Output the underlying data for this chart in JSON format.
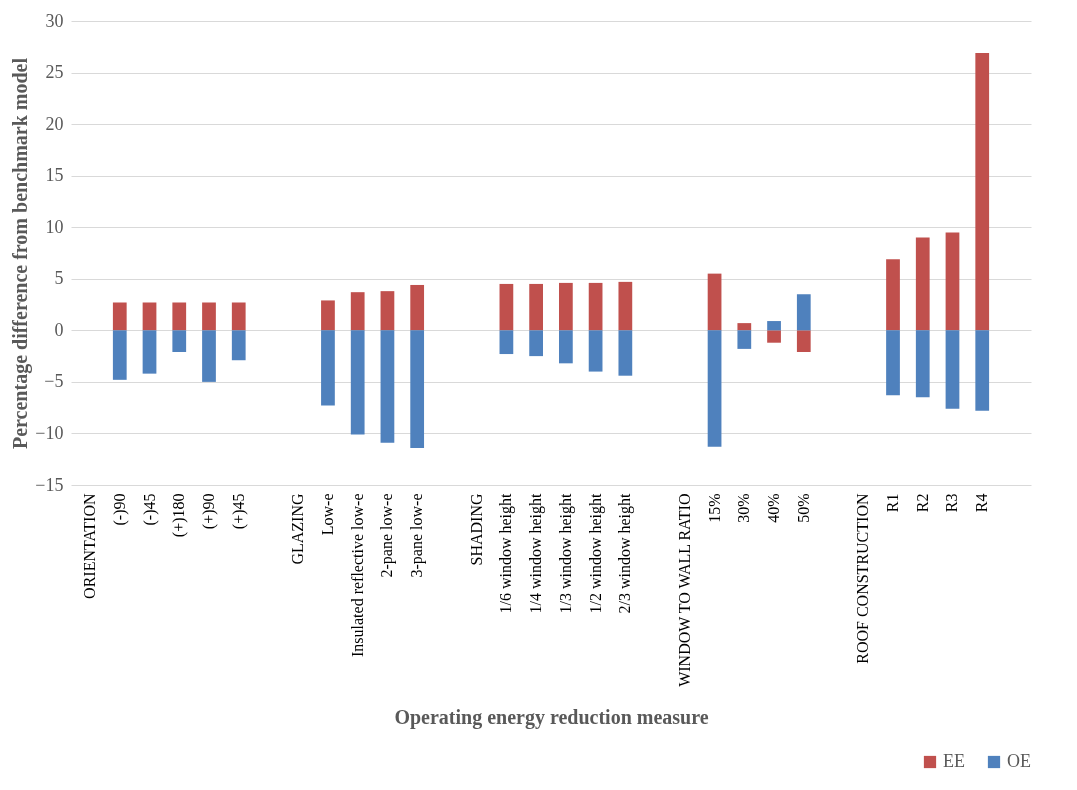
{
  "chart_data": {
    "type": "bar",
    "stacked": true,
    "xlabel": "Operating energy reduction measure",
    "ylabel": "Percentage difference from benchmark model",
    "categories": [
      "ORIENTATION",
      "(-)90",
      "(-)45",
      "(+)180",
      "(+)90",
      "(+)45",
      null,
      "GLAZING",
      "Low-e",
      "Insulated reflective low-e",
      "2-pane low-e",
      "3-pane low-e",
      null,
      "SHADING",
      "1/6 window height",
      "1/4 window height",
      "1/3 window height",
      "1/2 window height",
      "2/3 window height",
      null,
      "WINDOW TO WALL RATIO",
      "15%",
      "30%",
      "40%",
      "50%",
      null,
      "ROOF CONSTRUCTION",
      "R1",
      "R2",
      "R3",
      "R4",
      null
    ],
    "series": [
      {
        "name": "EE",
        "color": "#c0504d",
        "values": [
          null,
          2.7,
          2.7,
          2.7,
          2.7,
          2.7,
          null,
          null,
          2.9,
          3.7,
          3.8,
          4.4,
          null,
          null,
          4.5,
          4.5,
          4.6,
          4.6,
          4.7,
          null,
          null,
          5.5,
          0.7,
          -1.2,
          -2.1,
          null,
          null,
          6.9,
          9.0,
          9.5,
          26.9,
          null
        ]
      },
      {
        "name": "OE",
        "color": "#4f81bd",
        "values": [
          null,
          -4.8,
          -4.2,
          -2.1,
          -5.0,
          -2.9,
          null,
          null,
          -7.3,
          -10.1,
          -10.9,
          -11.4,
          null,
          null,
          -2.3,
          -2.5,
          -3.2,
          -4.0,
          -4.4,
          null,
          null,
          -11.3,
          -1.8,
          0.9,
          3.5,
          null,
          null,
          -6.3,
          -6.5,
          -7.6,
          -7.8,
          null
        ]
      }
    ],
    "ylim": [
      -15,
      30
    ],
    "yticks": [
      -15,
      -10,
      -5,
      0,
      5,
      10,
      15,
      20,
      25,
      30
    ],
    "grid": "y",
    "legend": "bottom right"
  }
}
